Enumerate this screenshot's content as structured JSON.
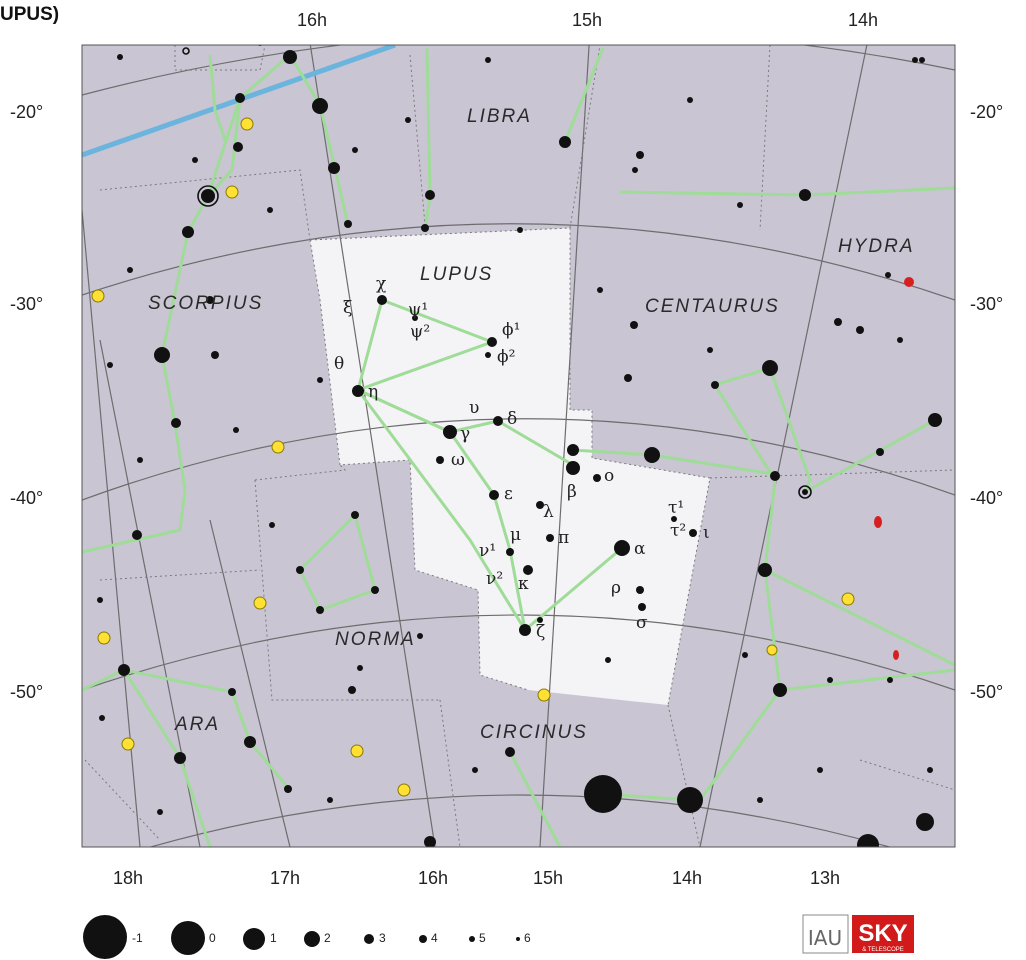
{
  "title": "UPUS)",
  "ra_top": [
    "16h",
    "15h",
    "14h"
  ],
  "ra_bottom": [
    "18h",
    "17h",
    "16h",
    "15h",
    "14h",
    "13h"
  ],
  "dec_left": [
    "-20°",
    "-30°",
    "-40°",
    "-50°"
  ],
  "dec_right": [
    "-20°",
    "-30°",
    "-40°",
    "-50°"
  ],
  "constellations": [
    "LIBRA",
    "LUPUS",
    "HYDRA",
    "SCORPIUS",
    "CENTAURUS",
    "NORMA",
    "ARA",
    "CIRCINUS"
  ],
  "stars": {
    "chi": "χ",
    "xi": "ξ",
    "psi1": "ψ¹",
    "psi2": "ψ²",
    "phi1": "ϕ¹",
    "phi2": "ϕ²",
    "theta": "θ",
    "eta": "η",
    "upsilon": "υ",
    "delta": "δ",
    "gamma": "γ",
    "omega": "ω",
    "beta": "β",
    "omicron": "ο",
    "epsilon": "ε",
    "lambda": "λ",
    "tau1": "τ¹",
    "tau2": "τ²",
    "iota": "ι",
    "nu1": "ν¹",
    "mu": "μ",
    "pi": "π",
    "alpha": "α",
    "nu2": "ν²",
    "kappa": "κ",
    "rho": "ρ",
    "sigma": "σ",
    "zeta": "ζ"
  },
  "legend": {
    "magnitudes": [
      "-1",
      "0",
      "1",
      "2",
      "3",
      "4",
      "5",
      "6"
    ]
  },
  "logos": {
    "iau": "IAU",
    "sky": "SKY",
    "sky_sub": "& TELESCOPE"
  },
  "colors": {
    "sky_area": "#c9c5d3",
    "lupus_area": "#f4f3f6",
    "stick": "#9fdc97",
    "ecliptic": "#6ab4dd",
    "red_star": "#d62020",
    "yellow": "#ffe033"
  }
}
